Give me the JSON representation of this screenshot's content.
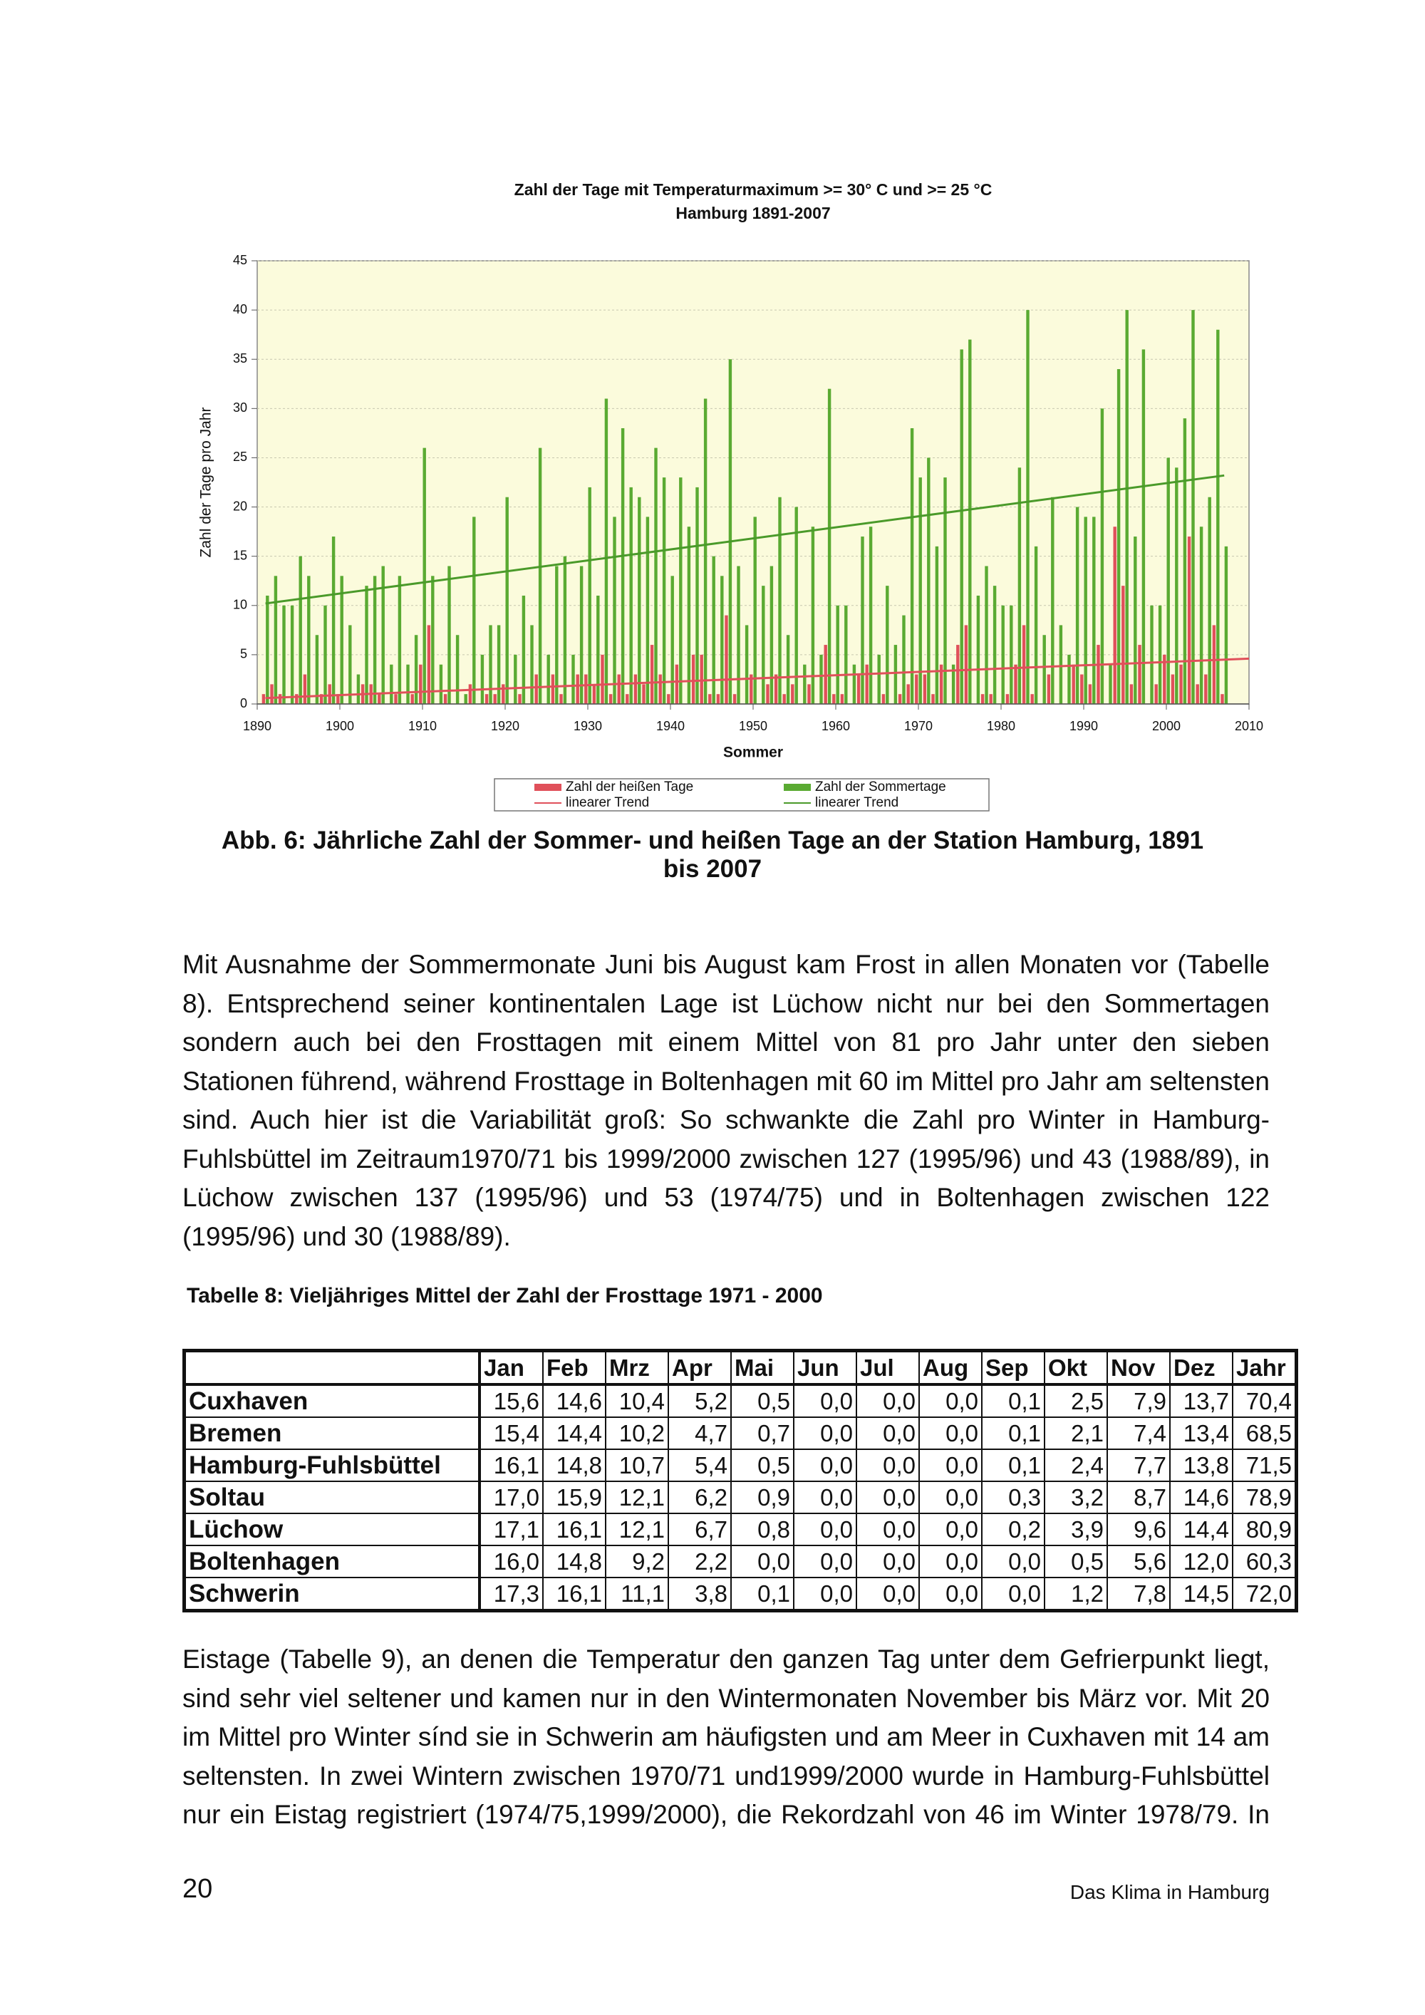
{
  "chart_data": {
    "type": "bar",
    "title": "Zahl der Tage mit Temperaturmaximum >= 30° C und >= 25 °C",
    "subtitle": "Hamburg 1891-2007",
    "x_label": "Sommer",
    "y_label": "Zahl der Tage pro Jahr",
    "xlim": [
      1890,
      2010
    ],
    "xticks": [
      1890,
      1900,
      1910,
      1920,
      1930,
      1940,
      1950,
      1960,
      1970,
      1980,
      1990,
      2000,
      2010
    ],
    "ylim": [
      0,
      45
    ],
    "yticks": [
      0,
      5,
      10,
      15,
      20,
      25,
      30,
      35,
      40,
      45
    ],
    "grid": true,
    "x": [
      1891,
      1892,
      1893,
      1894,
      1895,
      1896,
      1897,
      1898,
      1899,
      1900,
      1901,
      1902,
      1903,
      1904,
      1905,
      1906,
      1907,
      1908,
      1909,
      1910,
      1911,
      1912,
      1913,
      1914,
      1915,
      1916,
      1917,
      1918,
      1919,
      1920,
      1921,
      1922,
      1923,
      1924,
      1925,
      1926,
      1927,
      1928,
      1929,
      1930,
      1931,
      1932,
      1933,
      1934,
      1935,
      1936,
      1937,
      1938,
      1939,
      1940,
      1941,
      1942,
      1943,
      1944,
      1945,
      1946,
      1947,
      1948,
      1949,
      1950,
      1951,
      1952,
      1953,
      1954,
      1955,
      1956,
      1957,
      1958,
      1959,
      1960,
      1961,
      1962,
      1963,
      1964,
      1965,
      1966,
      1967,
      1968,
      1969,
      1970,
      1971,
      1972,
      1973,
      1974,
      1975,
      1976,
      1977,
      1978,
      1979,
      1980,
      1981,
      1982,
      1983,
      1984,
      1985,
      1986,
      1987,
      1988,
      1989,
      1990,
      1991,
      1992,
      1993,
      1994,
      1995,
      1996,
      1997,
      1998,
      1999,
      2000,
      2001,
      2002,
      2003,
      2004,
      2005,
      2006,
      2007
    ],
    "series": [
      {
        "name": "Zahl der heißen Tage",
        "color": "#e0505a",
        "type": "bar",
        "values": [
          1,
          2,
          1,
          0,
          1,
          3,
          0,
          1,
          2,
          1,
          0,
          0,
          2,
          2,
          1,
          0,
          1,
          0,
          1,
          4,
          8,
          0,
          1,
          0,
          0,
          2,
          0,
          1,
          1,
          2,
          0,
          1,
          0,
          3,
          0,
          3,
          1,
          0,
          3,
          3,
          2,
          5,
          1,
          3,
          1,
          3,
          2,
          6,
          3,
          1,
          4,
          0,
          5,
          5,
          1,
          1,
          9,
          1,
          0,
          3,
          0,
          2,
          3,
          1,
          2,
          0,
          2,
          0,
          6,
          1,
          1,
          0,
          3,
          4,
          0,
          1,
          0,
          1,
          2,
          3,
          3,
          1,
          4,
          0,
          6,
          8,
          0,
          1,
          1,
          0,
          1,
          4,
          8,
          1,
          0,
          3,
          0,
          0,
          4,
          3,
          2,
          6,
          0,
          18,
          12,
          2,
          6,
          0,
          2,
          5,
          3,
          4,
          17,
          2,
          3,
          8,
          1
        ]
      },
      {
        "name": "Zahl der Sommertage",
        "color": "#5aaa32",
        "type": "bar",
        "values": [
          11,
          13,
          10,
          10,
          15,
          13,
          7,
          10,
          17,
          13,
          8,
          3,
          12,
          13,
          14,
          4,
          13,
          4,
          7,
          26,
          13,
          4,
          14,
          7,
          1,
          19,
          5,
          8,
          8,
          21,
          5,
          11,
          8,
          26,
          5,
          14,
          15,
          5,
          14,
          22,
          11,
          31,
          19,
          28,
          22,
          21,
          19,
          26,
          23,
          13,
          23,
          18,
          22,
          31,
          15,
          13,
          35,
          14,
          8,
          19,
          12,
          14,
          21,
          7,
          20,
          4,
          18,
          5,
          32,
          10,
          10,
          4,
          17,
          18,
          5,
          12,
          6,
          9,
          28,
          23,
          25,
          16,
          23,
          4,
          36,
          37,
          11,
          14,
          12,
          10,
          10,
          24,
          40,
          16,
          7,
          21,
          8,
          5,
          20,
          19,
          19,
          30,
          4,
          34,
          40,
          17,
          36,
          10,
          10,
          25,
          24,
          29,
          40,
          18,
          21,
          38,
          16
        ]
      },
      {
        "name": "linearer Trend",
        "color": "#e0505a",
        "type": "line",
        "x": [
          1891,
          2010
        ],
        "values": [
          0.6,
          4.6
        ]
      },
      {
        "name": "linearer Trend",
        "color": "#4a9a2a",
        "type": "line",
        "x": [
          1891,
          2007
        ],
        "values": [
          10.2,
          23.2
        ]
      }
    ]
  },
  "caption": "Abb. 6: Jährliche Zahl der Sommer- und heißen Tage an der Station Hamburg, 1891 bis 2007",
  "paragraphs": [
    "Mit Ausnahme der Sommermonate Juni bis August kam Frost in allen Monaten vor (Tabelle 8). Entsprechend seiner kontinentalen Lage ist Lüchow nicht nur bei den Sommertagen sondern auch bei den Frosttagen mit einem Mittel von 81 pro Jahr unter den sieben Stationen führend, während Frosttage in Boltenhagen mit 60 im Mittel pro Jahr am seltensten sind. Auch hier ist die Variabilität groß: So schwankte die Zahl pro Winter in Hamburg-Fuhlsbüttel im Zeitraum1970/71 bis 1999/2000 zwischen 127 (1995/96) und 43 (1988/89), in Lüchow zwischen 137 (1995/96) und 53 (1974/75) und in Boltenhagen zwischen 122 (1995/96) und 30 (1988/89).",
    "Eistage (Tabelle 9), an denen die Temperatur den ganzen Tag unter dem Gefrierpunkt liegt, sind sehr viel seltener und kamen nur in den Wintermonaten November bis März vor. Mit 20 im Mittel pro Winter sínd sie in Schwerin am häufigsten und am Meer in Cuxhaven mit 14 am seltensten. In zwei Wintern zwischen 1970/71 und1999/2000 wurde in Hamburg-Fuhlsbüttel nur ein Eistag registriert (1974/75,1999/2000), die Rekordzahl von 46 im Winter 1978/79. In"
  ],
  "table": {
    "caption": "Tabelle 8: Vieljähriges Mittel der Zahl der Frosttage 1971 - 2000",
    "header": [
      "Jan",
      "Feb",
      "Mrz",
      "Apr",
      "Mai",
      "Jun",
      "Jul",
      "Aug",
      "Sep",
      "Okt",
      "Nov",
      "Dez",
      "Jahr"
    ],
    "rows": [
      {
        "station": "Cuxhaven",
        "values": [
          "15,6",
          "14,6",
          "10,4",
          "5,2",
          "0,5",
          "0,0",
          "0,0",
          "0,0",
          "0,1",
          "2,5",
          "7,9",
          "13,7",
          "70,4"
        ]
      },
      {
        "station": "Bremen",
        "values": [
          "15,4",
          "14,4",
          "10,2",
          "4,7",
          "0,7",
          "0,0",
          "0,0",
          "0,0",
          "0,1",
          "2,1",
          "7,4",
          "13,4",
          "68,5"
        ]
      },
      {
        "station": "Hamburg-Fuhlsbüttel",
        "values": [
          "16,1",
          "14,8",
          "10,7",
          "5,4",
          "0,5",
          "0,0",
          "0,0",
          "0,0",
          "0,1",
          "2,4",
          "7,7",
          "13,8",
          "71,5"
        ]
      },
      {
        "station": "Soltau",
        "values": [
          "17,0",
          "15,9",
          "12,1",
          "6,2",
          "0,9",
          "0,0",
          "0,0",
          "0,0",
          "0,3",
          "3,2",
          "8,7",
          "14,6",
          "78,9"
        ]
      },
      {
        "station": "Lüchow",
        "values": [
          "17,1",
          "16,1",
          "12,1",
          "6,7",
          "0,8",
          "0,0",
          "0,0",
          "0,0",
          "0,2",
          "3,9",
          "9,6",
          "14,4",
          "80,9"
        ]
      },
      {
        "station": "Boltenhagen",
        "values": [
          "16,0",
          "14,8",
          "9,2",
          "2,2",
          "0,0",
          "0,0",
          "0,0",
          "0,0",
          "0,0",
          "0,5",
          "5,6",
          "12,0",
          "60,3"
        ]
      },
      {
        "station": "Schwerin",
        "values": [
          "17,3",
          "16,1",
          "11,1",
          "3,8",
          "0,1",
          "0,0",
          "0,0",
          "0,0",
          "0,0",
          "1,2",
          "7,8",
          "14,5",
          "72,0"
        ]
      }
    ]
  },
  "footer": {
    "page": "20",
    "title": "Das Klima in Hamburg"
  }
}
